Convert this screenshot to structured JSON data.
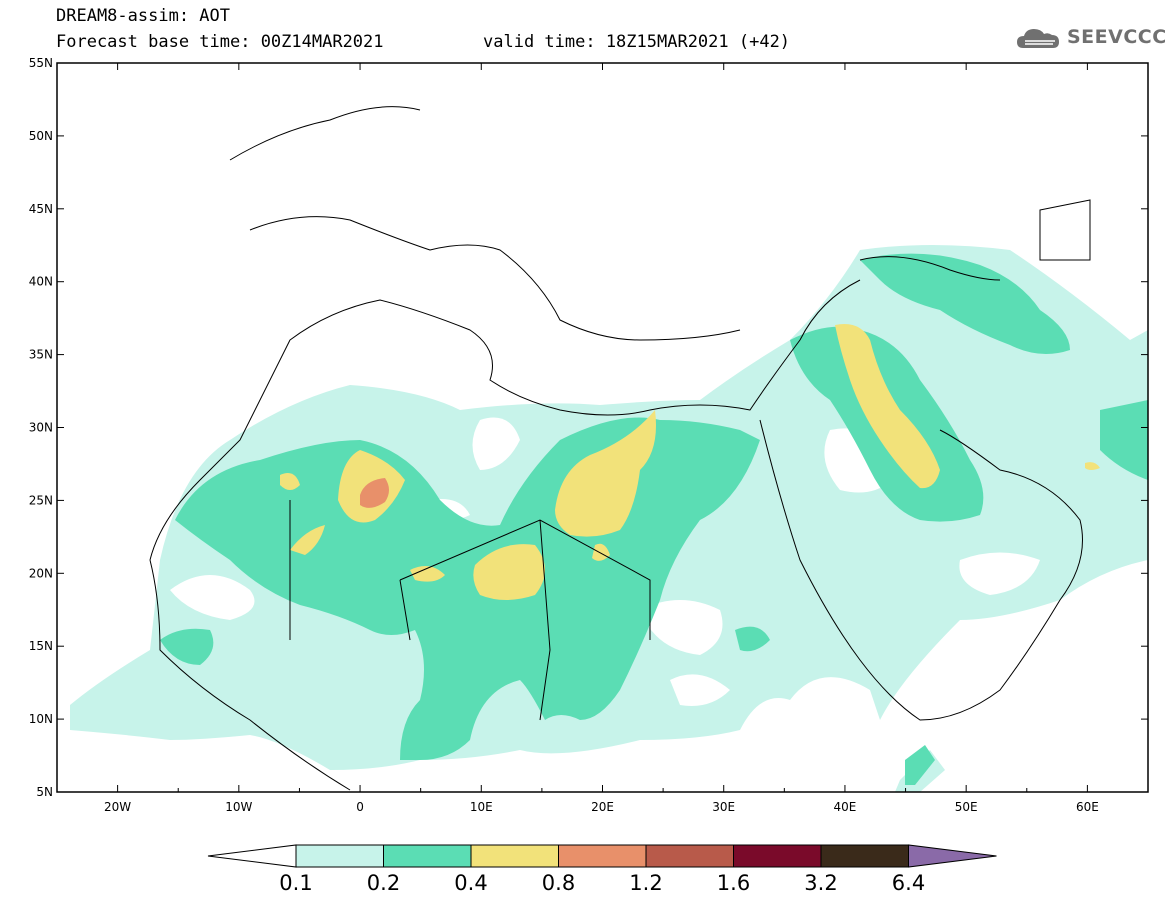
{
  "header": {
    "title": "DREAM8-assim: AOT",
    "base_time": "Forecast base time: 00Z14MAR2021",
    "valid_time": "valid time: 18Z15MAR2021 (+42)",
    "logo_text": "SEEVCCC"
  },
  "map": {
    "lat_labels": [
      "55N",
      "50N",
      "45N",
      "40N",
      "35N",
      "30N",
      "25N",
      "20N",
      "15N",
      "10N",
      "5N"
    ],
    "lon_labels": [
      "20W",
      "10W",
      "0",
      "10E",
      "20E",
      "30E",
      "40E",
      "50E",
      "60E"
    ],
    "lat_range": [
      5,
      55
    ],
    "lon_range": [
      -25,
      65
    ],
    "colors": {
      "level_0.1": "#c7f3ea",
      "level_0.2": "#5bddb4",
      "level_0.4": "#f2e27a",
      "level_0.8": "#e8906a",
      "level_1.2": "#b85a4a",
      "level_1.6": "#7a0a2a",
      "level_3.2": "#3a2a1a",
      "level_6.4": "#8a6aa8"
    }
  },
  "colorbar": {
    "labels": [
      "0.1",
      "0.2",
      "0.4",
      "0.8",
      "1.2",
      "1.6",
      "3.2",
      "6.4"
    ],
    "colors": [
      "#c7f3ea",
      "#5bddb4",
      "#f2e27a",
      "#e8906a",
      "#b85a4a",
      "#7a0a2a",
      "#3a2a1a"
    ],
    "left_cap_color": "#ffffff",
    "right_cap_color": "#8a6aa8"
  }
}
